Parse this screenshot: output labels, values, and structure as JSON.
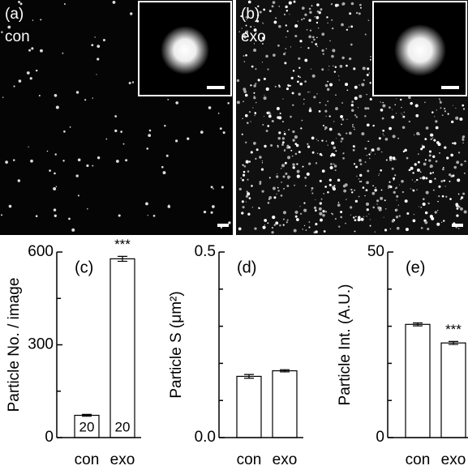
{
  "panels": [
    {
      "label": "(a)",
      "condition": "con"
    },
    {
      "label": "(b)",
      "condition": "exo"
    }
  ],
  "chart_data": [
    {
      "type": "bar",
      "panel": "(c)",
      "ylabel": "Particle No. / image",
      "categories": [
        "con",
        "exo"
      ],
      "values": [
        72,
        578
      ],
      "errors": [
        3,
        8
      ],
      "counts": [
        20,
        20
      ],
      "annotations": [
        null,
        "***"
      ],
      "ylim": [
        0,
        600
      ],
      "yticks": [
        0,
        300,
        600
      ],
      "minor_yticks": [
        150,
        450
      ],
      "color": "#ffffff"
    },
    {
      "type": "bar",
      "panel": "(d)",
      "ylabel": "Particle S (μm²)",
      "categories": [
        "con",
        "exo"
      ],
      "values": [
        0.165,
        0.18
      ],
      "errors": [
        0.005,
        0.003
      ],
      "annotations": [
        null,
        null
      ],
      "ylim": [
        0,
        0.5
      ],
      "yticks": [
        {
          "value": 0,
          "label": "0.0"
        },
        0.5
      ],
      "minor_yticks": [
        0.1,
        0.2,
        0.3,
        0.4
      ],
      "color": "#ffffff"
    },
    {
      "type": "bar",
      "panel": "(e)",
      "ylabel": "Particle Int. (A.U.)",
      "categories": [
        "con",
        "exo"
      ],
      "values": [
        30.5,
        25.5
      ],
      "errors": [
        0.4,
        0.4
      ],
      "annotations": [
        null,
        "***"
      ],
      "ylim": [
        0,
        50
      ],
      "yticks": [
        0,
        50
      ],
      "minor_yticks": [
        10,
        20,
        30,
        40
      ],
      "color": "#ffffff"
    }
  ]
}
